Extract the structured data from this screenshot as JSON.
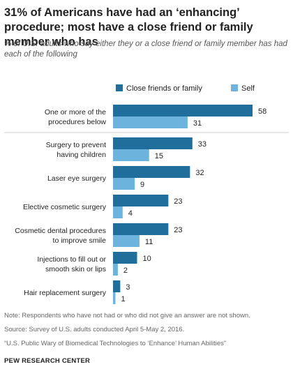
{
  "title": "31% of Americans have had an ‘enhancing’ procedure; most have a close friend or family member who has",
  "subtitle": "% of U.S. adults who say either they or a close friend or family member has had each of the following",
  "colors": {
    "close": "#1f6e9c",
    "self": "#6cb3de",
    "divider": "#cccccc",
    "text": "#222222"
  },
  "chart_data": {
    "type": "bar",
    "orientation": "horizontal",
    "legend_position": "top",
    "categories": [
      [
        "One or more of the",
        "procedures below"
      ],
      [
        "Surgery to prevent",
        "having children"
      ],
      [
        "Laser eye surgery"
      ],
      [
        "Elective cosmetic surgery"
      ],
      [
        "Cosmetic dental procedures",
        "to improve smile"
      ],
      [
        "Injections to fill out or",
        "smooth skin or lips"
      ],
      [
        "Hair replacement surgery"
      ]
    ],
    "series": [
      {
        "name": "Close friends or family",
        "values": [
          58,
          33,
          32,
          23,
          23,
          10,
          3
        ]
      },
      {
        "name": "Self",
        "values": [
          31,
          15,
          9,
          4,
          11,
          2,
          1
        ]
      }
    ],
    "xlim": [
      0,
      58
    ],
    "grid": false
  },
  "notes": {
    "note": "Note: Respondents who have not had or who did not give an answer are not shown.",
    "source": "Source: Survey of U.S. adults conducted April 5-May 2, 2016.",
    "report": "“U.S. Public Wary of Biomedical Technologies to ‘Enhance’ Human Abilities”",
    "org": "PEW RESEARCH CENTER"
  }
}
